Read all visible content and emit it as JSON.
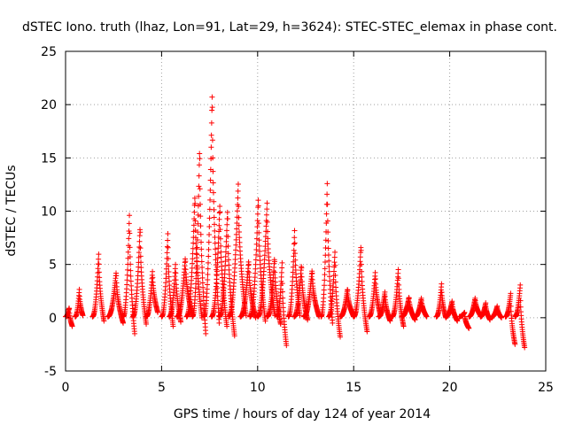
{
  "chart_data": {
    "type": "scatter",
    "title": "dSTEC Iono. truth (lhaz, Lon=91, Lat=29, h=3624): STEC-STEC_elemax in phase cont.",
    "xlabel": "GPS time / hours of day 124 of year 2014",
    "ylabel": "dSTEC  / TECUs",
    "xlim": [
      0,
      25
    ],
    "ylim": [
      -5,
      25
    ],
    "xticks": [
      0,
      5,
      10,
      15,
      20,
      25
    ],
    "yticks": [
      -5,
      0,
      5,
      10,
      15,
      20,
      25
    ],
    "grid": true,
    "marker": "+",
    "color": "#ff0000",
    "arcs": [
      {
        "start": 0.0,
        "end": 0.35,
        "peak": 1.0,
        "end_value": -0.8
      },
      {
        "start": 0.5,
        "end": 0.9,
        "peak": 2.7,
        "end_value": 0.2
      },
      {
        "start": 1.4,
        "end": 2.0,
        "peak": 6.2,
        "end_value": -0.3
      },
      {
        "start": 2.2,
        "end": 3.0,
        "peak": 4.4,
        "end_value": -0.5
      },
      {
        "start": 3.0,
        "end": 3.6,
        "peak": 10.0,
        "end_value": -1.5
      },
      {
        "start": 3.5,
        "end": 4.2,
        "peak": 8.8,
        "end_value": -0.6
      },
      {
        "start": 4.2,
        "end": 4.8,
        "peak": 4.5,
        "end_value": 0.5
      },
      {
        "start": 5.0,
        "end": 5.6,
        "peak": 8.2,
        "end_value": -0.8
      },
      {
        "start": 5.4,
        "end": 6.0,
        "peak": 5.2,
        "end_value": -0.4
      },
      {
        "start": 5.8,
        "end": 6.6,
        "peak": 5.8,
        "end_value": 0.3
      },
      {
        "start": 6.3,
        "end": 7.1,
        "peak": 11.8,
        "end_value": 0.0
      },
      {
        "start": 6.6,
        "end": 7.3,
        "peak": 16.4,
        "end_value": -1.5
      },
      {
        "start": 7.2,
        "end": 8.0,
        "peak": 21.8,
        "end_value": -0.5
      },
      {
        "start": 7.6,
        "end": 8.4,
        "peak": 11.0,
        "end_value": -0.8
      },
      {
        "start": 8.0,
        "end": 8.8,
        "peak": 10.4,
        "end_value": -1.7
      },
      {
        "start": 8.5,
        "end": 9.4,
        "peak": 12.7,
        "end_value": 0.2
      },
      {
        "start": 9.1,
        "end": 9.9,
        "peak": 5.5,
        "end_value": 0.0
      },
      {
        "start": 9.6,
        "end": 10.4,
        "peak": 11.6,
        "end_value": -0.3
      },
      {
        "start": 10.0,
        "end": 10.9,
        "peak": 10.9,
        "end_value": 0.2
      },
      {
        "start": 10.5,
        "end": 11.2,
        "peak": 5.8,
        "end_value": -0.6
      },
      {
        "start": 11.0,
        "end": 11.5,
        "peak": 5.2,
        "end_value": -2.6
      },
      {
        "start": 11.6,
        "end": 12.2,
        "peak": 8.5,
        "end_value": 0.2
      },
      {
        "start": 11.9,
        "end": 12.6,
        "peak": 5.1,
        "end_value": -0.2
      },
      {
        "start": 12.4,
        "end": 13.2,
        "peak": 4.6,
        "end_value": 0.1
      },
      {
        "start": 13.3,
        "end": 13.9,
        "peak": 13.1,
        "end_value": -0.5
      },
      {
        "start": 13.7,
        "end": 14.3,
        "peak": 6.4,
        "end_value": -1.8
      },
      {
        "start": 14.3,
        "end": 15.0,
        "peak": 2.8,
        "end_value": 0.1
      },
      {
        "start": 15.0,
        "end": 15.7,
        "peak": 7.0,
        "end_value": -1.3
      },
      {
        "start": 15.8,
        "end": 16.4,
        "peak": 4.4,
        "end_value": 0.2
      },
      {
        "start": 16.3,
        "end": 16.9,
        "peak": 2.5,
        "end_value": -0.3
      },
      {
        "start": 17.0,
        "end": 17.6,
        "peak": 4.7,
        "end_value": -0.8
      },
      {
        "start": 17.5,
        "end": 18.2,
        "peak": 2.0,
        "end_value": -0.2
      },
      {
        "start": 18.2,
        "end": 18.8,
        "peak": 1.9,
        "end_value": 0.1
      },
      {
        "start": 19.3,
        "end": 19.8,
        "peak": 3.2,
        "end_value": 0.0
      },
      {
        "start": 19.8,
        "end": 20.4,
        "peak": 1.6,
        "end_value": -0.3
      },
      {
        "start": 20.5,
        "end": 21.0,
        "peak": 0.5,
        "end_value": -1.0
      },
      {
        "start": 21.0,
        "end": 21.6,
        "peak": 1.9,
        "end_value": 0.2
      },
      {
        "start": 21.6,
        "end": 22.1,
        "peak": 1.4,
        "end_value": -0.2
      },
      {
        "start": 22.2,
        "end": 22.7,
        "peak": 1.1,
        "end_value": 0.0
      },
      {
        "start": 22.9,
        "end": 23.4,
        "peak": 2.3,
        "end_value": -2.5
      },
      {
        "start": 23.4,
        "end": 23.9,
        "peak": 3.1,
        "end_value": -2.8
      }
    ]
  }
}
